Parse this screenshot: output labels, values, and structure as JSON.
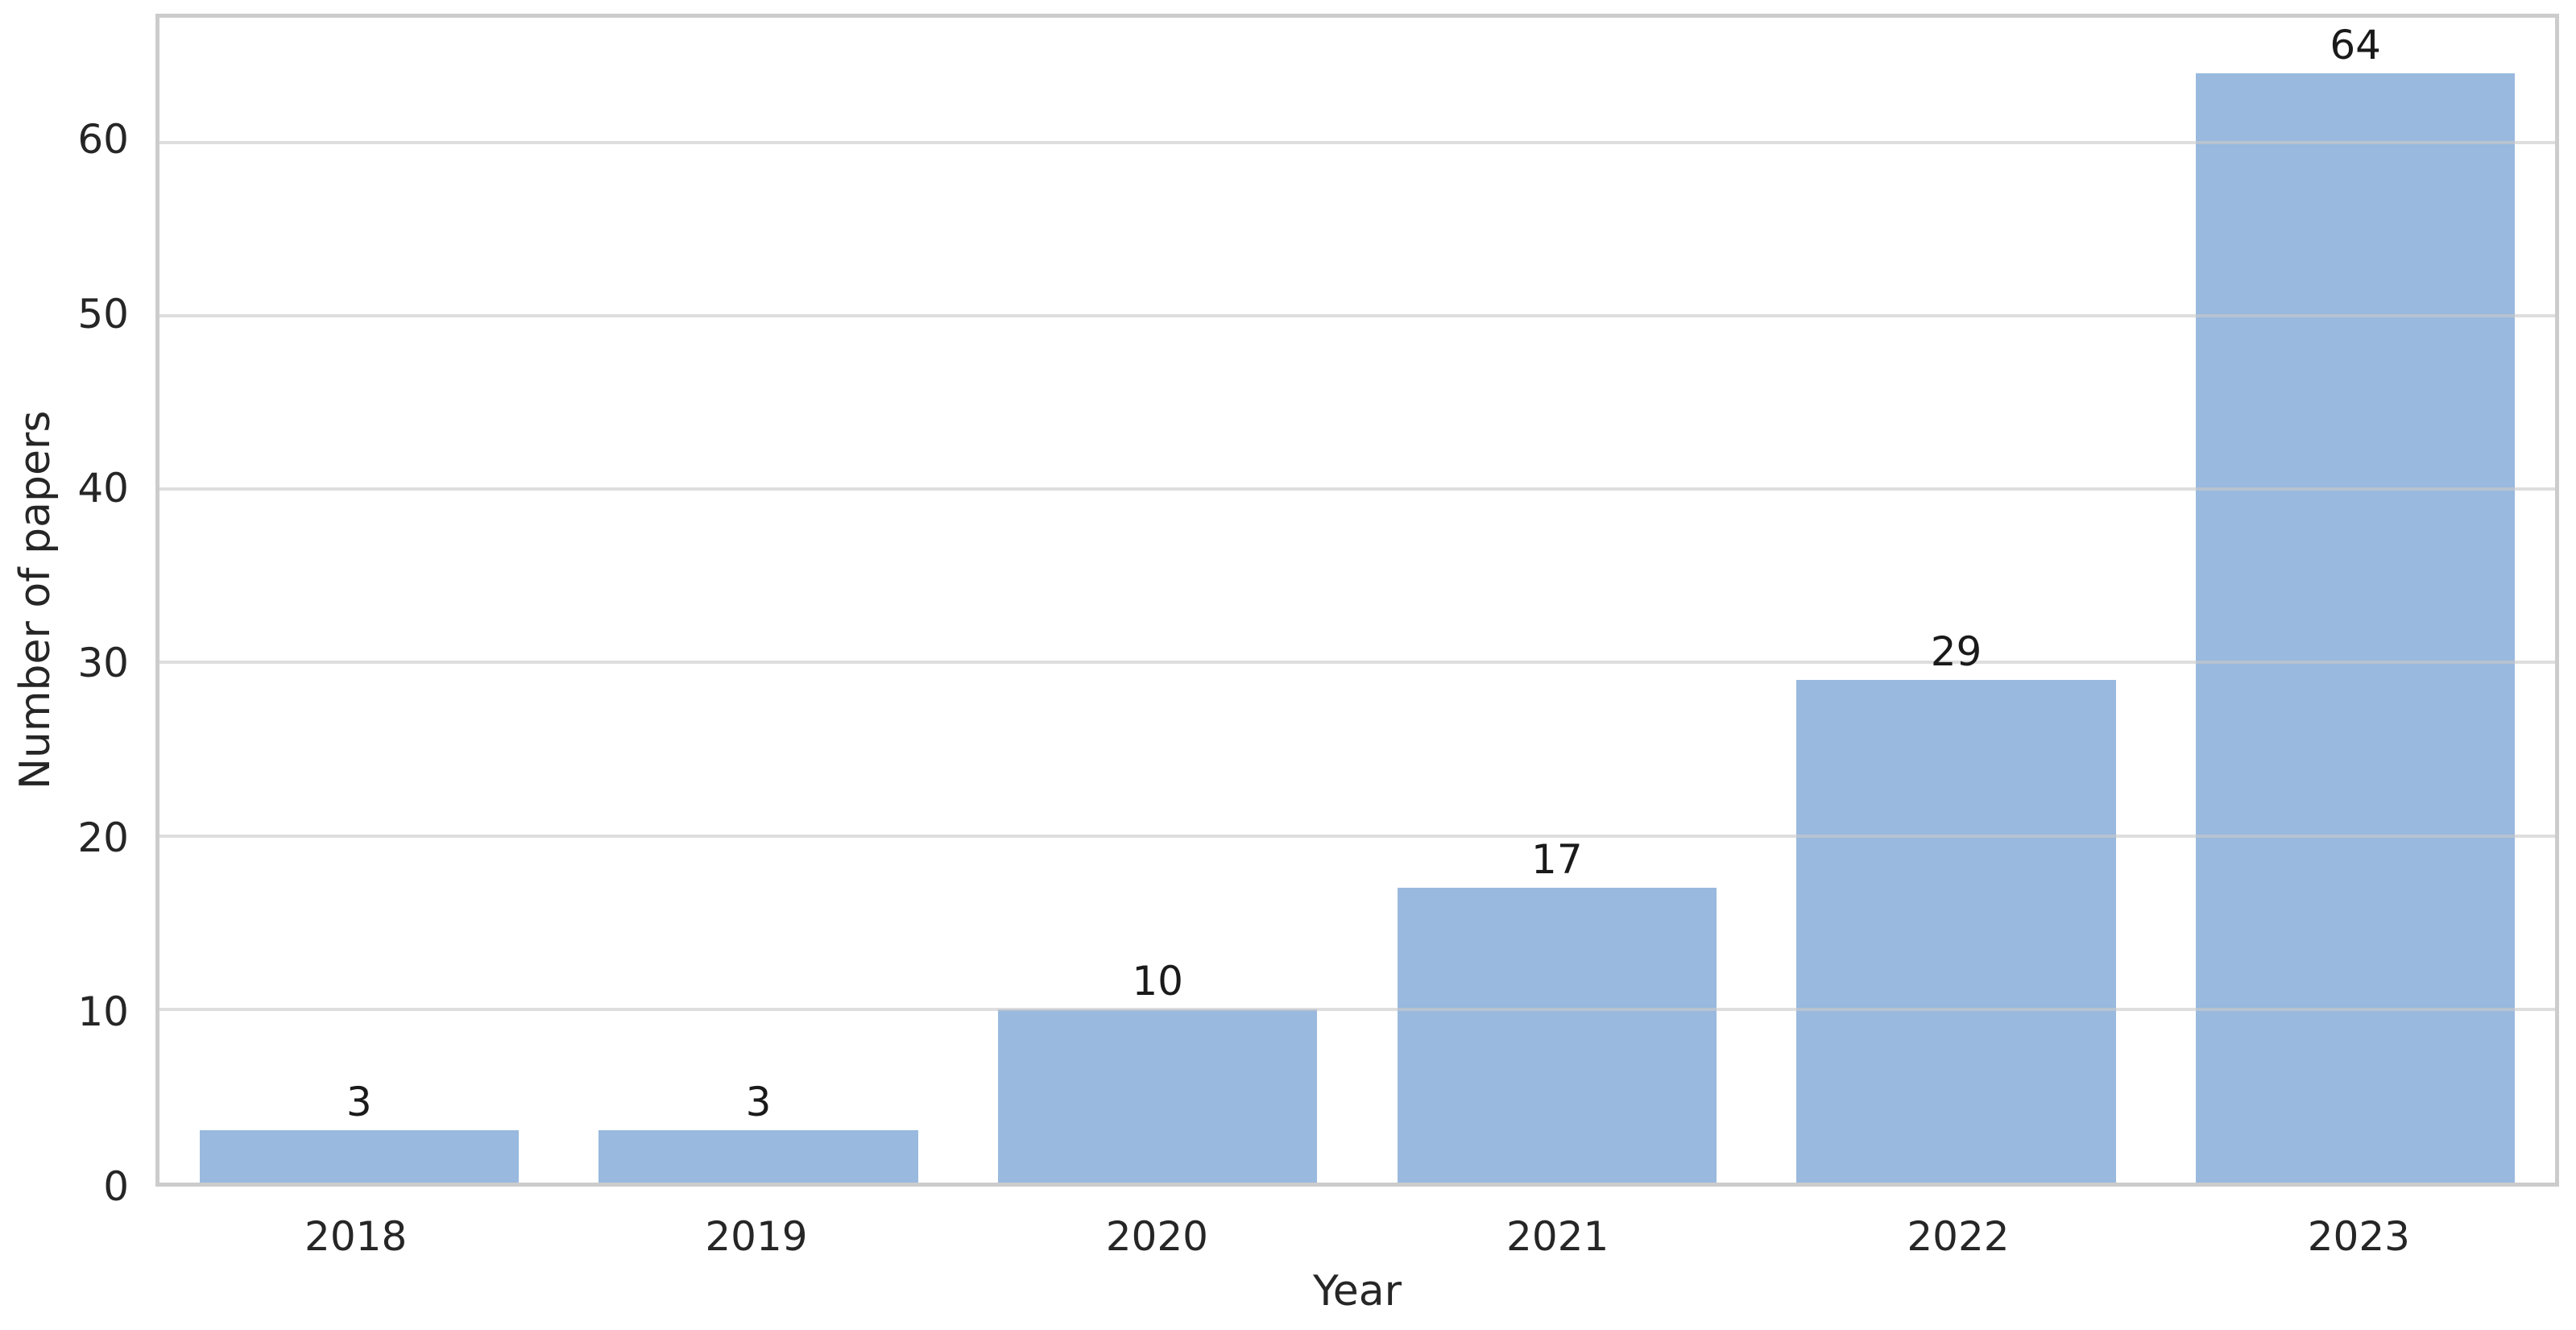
{
  "figure": {
    "background": "#ffffff"
  },
  "chart_data": {
    "type": "bar",
    "categories": [
      "2018",
      "2019",
      "2020",
      "2021",
      "2022",
      "2023"
    ],
    "values": [
      3,
      3,
      10,
      17,
      29,
      64
    ],
    "bar_value_labels": [
      "3",
      "3",
      "10",
      "17",
      "29",
      "64"
    ],
    "title": "",
    "xlabel": "Year",
    "ylabel": "Number of papers",
    "ylim": [
      0,
      67.2
    ],
    "yticks": [
      0,
      10,
      20,
      30,
      40,
      50,
      60
    ],
    "grid": "horizontal",
    "legend": "none",
    "bar_width_fraction": 0.8,
    "colors": {
      "bar_fill": "#99b9de",
      "grid_line": "#c9c9c9",
      "spine": "#cccccc",
      "tick_text": "#262626",
      "value_text": "#1a1a1a"
    }
  }
}
